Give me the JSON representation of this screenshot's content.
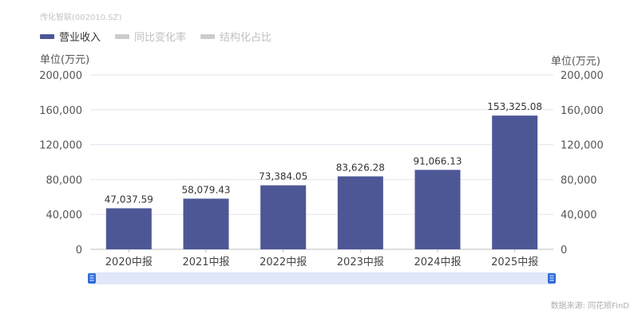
{
  "watermark": "传化智联(002010.SZ)",
  "legend": [
    {
      "label": "营业收入",
      "color": "#4e5796",
      "active": true
    },
    {
      "label": "同比变化率",
      "color": "#cccccc",
      "active": false
    },
    {
      "label": "结构化占比",
      "color": "#cccccc",
      "active": false
    }
  ],
  "units": {
    "left": "单位(万元)",
    "right": "单位(万元)"
  },
  "source": "数据来源: 同花顺FinD",
  "colors": {
    "bar": "#4e5796",
    "slider": "#dfe7f8",
    "handle": "#2f6bd9",
    "grid": "#e3e3ee"
  },
  "chart_data": {
    "type": "bar",
    "categories": [
      "2020中报",
      "2021中报",
      "2022中报",
      "2023中报",
      "2024中报",
      "2025中报"
    ],
    "series": [
      {
        "name": "营业收入",
        "values": [
          47037.59,
          58079.43,
          73384.05,
          83626.28,
          91066.13,
          153325.08
        ]
      }
    ],
    "data_labels": [
      "47,037.59",
      "58,079.43",
      "73,384.05",
      "83,626.28",
      "91,066.13",
      "153,325.08"
    ],
    "ylim": [
      0,
      200000
    ],
    "yticks": [
      0,
      40000,
      80000,
      120000,
      160000,
      200000
    ],
    "ytick_labels": [
      "0",
      "40,000",
      "80,000",
      "120,000",
      "160,000",
      "200,000"
    ],
    "grid": true
  }
}
